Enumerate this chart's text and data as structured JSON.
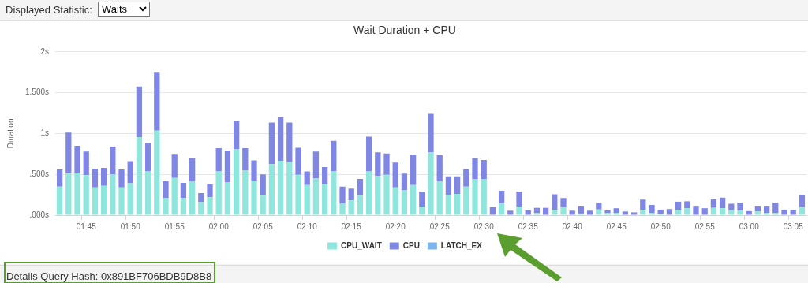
{
  "chart_data": {
    "type": "bar",
    "title": "Wait Duration + CPU",
    "ylabel": "Duration",
    "stacked": true,
    "categories": [
      null,
      null,
      null,
      "01:45",
      null,
      null,
      null,
      null,
      "01:50",
      null,
      null,
      null,
      null,
      "01:55",
      null,
      null,
      null,
      null,
      "02:00",
      null,
      null,
      null,
      null,
      "02:05",
      null,
      null,
      null,
      null,
      "02:10",
      null,
      null,
      null,
      null,
      "02:15",
      null,
      null,
      null,
      null,
      "02:20",
      null,
      null,
      null,
      null,
      "02:25",
      null,
      null,
      null,
      null,
      "02:30",
      null,
      null,
      null,
      null,
      "02:35",
      null,
      null,
      null,
      null,
      "02:40",
      null,
      null,
      null,
      null,
      "02:45",
      null,
      null,
      null,
      null,
      "02:50",
      null,
      null,
      null,
      null,
      "02:55",
      null,
      null,
      null,
      null,
      "03:00",
      null,
      null,
      null,
      null,
      "03:05",
      null
    ],
    "series": [
      {
        "name": "CPU_WAIT",
        "color": "#8ee6dc",
        "values": [
          0.35,
          0.51,
          0.52,
          0.49,
          0.34,
          0.36,
          0.5,
          0.34,
          0.39,
          0.955,
          0.54,
          1.035,
          0.21,
          0.455,
          0.21,
          0.41,
          0.16,
          0.22,
          0.54,
          0.405,
          0.81,
          0.545,
          0.42,
          0.24,
          0.625,
          0.665,
          0.65,
          0.495,
          0.37,
          0.45,
          0.38,
          0.54,
          0.14,
          0.18,
          0.24,
          0.535,
          0.48,
          0.495,
          0.34,
          0.31,
          0.37,
          0.105,
          0.77,
          0.41,
          0.25,
          0.26,
          0.35,
          0.44,
          0.44,
          0,
          0.14,
          0,
          0.105,
          0,
          0.025,
          0,
          0.065,
          0.1,
          0,
          0.02,
          0,
          0.07,
          0.025,
          0.025,
          0,
          0,
          0.065,
          0.025,
          0.015,
          0,
          0.065,
          0.085,
          0,
          0,
          0.09,
          0.085,
          0.06,
          0.055,
          0,
          0.045,
          0.025,
          0.025,
          0,
          0,
          0.1
        ]
      },
      {
        "name": "CPU",
        "color": "#7f86e4",
        "values": [
          0.21,
          0.5,
          0.33,
          0.29,
          0.23,
          0.22,
          0.34,
          0.22,
          0.27,
          0.62,
          0.34,
          0.72,
          0.205,
          0.295,
          0.185,
          0.29,
          0.11,
          0.16,
          0.28,
          0.385,
          0.34,
          0.275,
          0.25,
          0.26,
          0.51,
          0.535,
          0.485,
          0.33,
          0.165,
          0.33,
          0.21,
          0.37,
          0.21,
          0.145,
          0.205,
          0.425,
          0.29,
          0.26,
          0.305,
          0.2,
          0.37,
          0.185,
          0.48,
          0.325,
          0.225,
          0.215,
          0.215,
          0.26,
          0.235,
          0.1,
          0.16,
          0.055,
          0.185,
          0.06,
          0.065,
          0.09,
          0.19,
          0.11,
          0.055,
          0.095,
          0.055,
          0.08,
          0.035,
          0.06,
          0.045,
          0.035,
          0.125,
          0.1,
          0.05,
          0.075,
          0.1,
          0.085,
          0.115,
          0.085,
          0.105,
          0.13,
          0.08,
          0.1,
          0.05,
          0.07,
          0.09,
          0.13,
          0.065,
          0.065,
          0.145
        ]
      },
      {
        "name": "LATCH_EX",
        "color": "#7cb5ec",
        "values": [
          0,
          0,
          0,
          0,
          0,
          0,
          0,
          0,
          0,
          0,
          0,
          0,
          0,
          0,
          0,
          0,
          0,
          0,
          0,
          0,
          0,
          0,
          0,
          0,
          0,
          0,
          0,
          0,
          0,
          0,
          0,
          0,
          0,
          0,
          0,
          0,
          0,
          0,
          0,
          0,
          0,
          0,
          0,
          0,
          0,
          0,
          0,
          0,
          0,
          0,
          0,
          0,
          0,
          0,
          0,
          0,
          0,
          0,
          0,
          0,
          0,
          0,
          0,
          0,
          0,
          0,
          0,
          0,
          0,
          0,
          0,
          0,
          0,
          0,
          0,
          0,
          0,
          0,
          0,
          0,
          0,
          0,
          0,
          0,
          0
        ]
      }
    ],
    "ylim": [
      0,
      2
    ],
    "yticks": [
      {
        "value": 0,
        "label": ".000s"
      },
      {
        "value": 0.5,
        "label": ".500s"
      },
      {
        "value": 1,
        "label": "1s"
      },
      {
        "value": 1.5,
        "label": "1.500s"
      },
      {
        "value": 2,
        "label": "2s"
      }
    ],
    "grid": "y",
    "legend": "bottom",
    "annotations": [
      "Displayed Statistic:",
      "Waits",
      "Details Query Hash: 0x891BF706BDB9D8B8"
    ]
  }
}
